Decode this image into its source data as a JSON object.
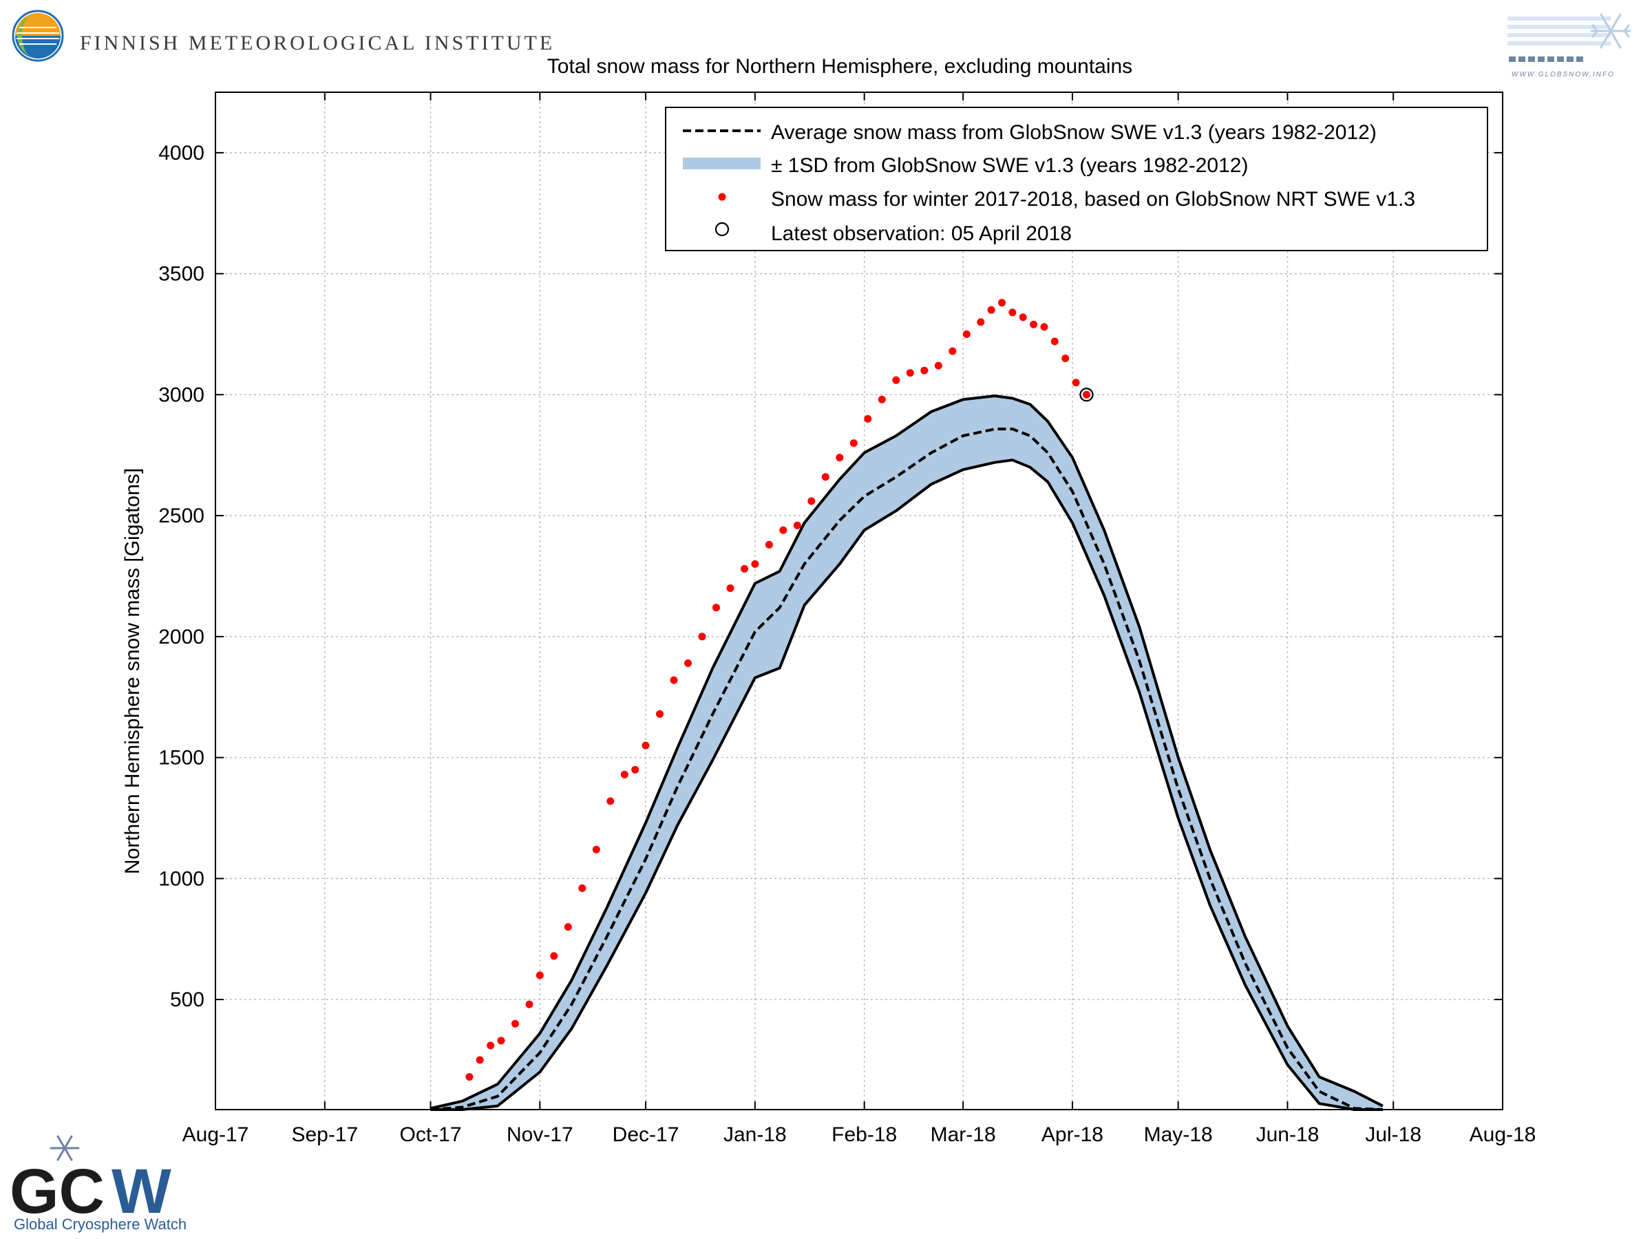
{
  "header": {
    "org_name": "FINNISH METEOROLOGICAL INSTITUTE",
    "partner_url": "WWW.GLOBSNOW.INFO",
    "footer_org": "Global Cryosphere Watch"
  },
  "colors": {
    "band_fill": "#b0cae3",
    "observation": "#ff0000",
    "mean_line": "#000000",
    "fmi_logo": [
      "#1f6fb5",
      "#f2a21b",
      "#7ab648"
    ],
    "gcw_blue": "#2a5c96"
  },
  "chart_data": {
    "type": "line",
    "title": "Total snow mass for Northern Hemisphere, excluding mountains",
    "ylabel": "Northern Hemisphere snow mass [Gigatons]",
    "xlabel": "",
    "ylim": [
      45,
      4250
    ],
    "x_range": [
      "2017-08-01",
      "2018-08-01"
    ],
    "grid": true,
    "legend_position": "top-right",
    "x_ticks": [
      {
        "date": "2017-08-01",
        "label": "Aug-17"
      },
      {
        "date": "2017-09-01",
        "label": "Sep-17"
      },
      {
        "date": "2017-10-01",
        "label": "Oct-17"
      },
      {
        "date": "2017-11-01",
        "label": "Nov-17"
      },
      {
        "date": "2017-12-01",
        "label": "Dec-17"
      },
      {
        "date": "2018-01-01",
        "label": "Jan-18"
      },
      {
        "date": "2018-02-01",
        "label": "Feb-18"
      },
      {
        "date": "2018-03-01",
        "label": "Mar-18"
      },
      {
        "date": "2018-04-01",
        "label": "Apr-18"
      },
      {
        "date": "2018-05-01",
        "label": "May-18"
      },
      {
        "date": "2018-06-01",
        "label": "Jun-18"
      },
      {
        "date": "2018-07-01",
        "label": "Jul-18"
      },
      {
        "date": "2018-08-01",
        "label": "Aug-18"
      }
    ],
    "y_ticks": [
      500,
      1000,
      1500,
      2000,
      2500,
      3000,
      3500,
      4000
    ],
    "legend": [
      {
        "label": "Average snow mass from GlobSnow SWE v1.3 (years 1982-2012)",
        "kind": "dashed-line"
      },
      {
        "label": "± 1SD from GlobSnow SWE v1.3 (years 1982-2012)",
        "kind": "band"
      },
      {
        "label": "Snow mass for winter 2017-2018, based on GlobSnow NRT SWE v1.3",
        "kind": "dot"
      },
      {
        "label": "Latest observation: 05 April 2018",
        "kind": "circle"
      }
    ],
    "series": [
      {
        "name": "Average snow mass from GlobSnow SWE v1.3 (years 1982-2012)",
        "x": [
          "2017-10-01",
          "2017-10-10",
          "2017-10-20",
          "2017-11-01",
          "2017-11-10",
          "2017-11-20",
          "2017-12-01",
          "2017-12-10",
          "2017-12-20",
          "2018-01-01",
          "2018-01-08",
          "2018-01-15",
          "2018-01-25",
          "2018-02-01",
          "2018-02-10",
          "2018-02-20",
          "2018-03-01",
          "2018-03-10",
          "2018-03-15",
          "2018-03-20",
          "2018-03-25",
          "2018-04-01",
          "2018-04-10",
          "2018-04-20",
          "2018-05-01",
          "2018-05-10",
          "2018-05-20",
          "2018-06-01",
          "2018-06-10",
          "2018-06-20",
          "2018-06-28"
        ],
        "values": [
          45,
          55,
          100,
          280,
          480,
          760,
          1080,
          1380,
          1680,
          2020,
          2120,
          2300,
          2480,
          2580,
          2660,
          2760,
          2830,
          2858,
          2858,
          2830,
          2760,
          2600,
          2300,
          1900,
          1370,
          1000,
          650,
          300,
          120,
          50,
          45
        ]
      },
      {
        "name": "+1SD",
        "x": [
          "2017-10-01",
          "2017-10-10",
          "2017-10-20",
          "2017-11-01",
          "2017-11-10",
          "2017-11-20",
          "2017-12-01",
          "2017-12-10",
          "2017-12-20",
          "2018-01-01",
          "2018-01-08",
          "2018-01-15",
          "2018-01-25",
          "2018-02-01",
          "2018-02-10",
          "2018-02-20",
          "2018-03-01",
          "2018-03-10",
          "2018-03-15",
          "2018-03-20",
          "2018-03-25",
          "2018-04-01",
          "2018-04-10",
          "2018-04-20",
          "2018-05-01",
          "2018-05-10",
          "2018-05-20",
          "2018-06-01",
          "2018-06-10",
          "2018-06-20",
          "2018-06-28"
        ],
        "values": [
          50,
          80,
          150,
          360,
          580,
          880,
          1230,
          1540,
          1870,
          2220,
          2270,
          2470,
          2650,
          2760,
          2830,
          2930,
          2980,
          2995,
          2985,
          2960,
          2890,
          2740,
          2440,
          2040,
          1500,
          1120,
          760,
          390,
          180,
          120,
          60
        ]
      },
      {
        "name": "-1SD",
        "x": [
          "2017-10-01",
          "2017-10-10",
          "2017-10-20",
          "2017-11-01",
          "2017-11-10",
          "2017-11-20",
          "2017-12-01",
          "2017-12-10",
          "2017-12-20",
          "2018-01-01",
          "2018-01-08",
          "2018-01-15",
          "2018-01-25",
          "2018-02-01",
          "2018-02-10",
          "2018-02-20",
          "2018-03-01",
          "2018-03-10",
          "2018-03-15",
          "2018-03-20",
          "2018-03-25",
          "2018-04-01",
          "2018-04-10",
          "2018-04-20",
          "2018-05-01",
          "2018-05-10",
          "2018-05-20",
          "2018-06-01",
          "2018-06-10",
          "2018-06-20",
          "2018-06-28"
        ],
        "values": [
          45,
          45,
          60,
          200,
          380,
          640,
          940,
          1220,
          1490,
          1830,
          1870,
          2130,
          2300,
          2440,
          2520,
          2630,
          2690,
          2720,
          2730,
          2700,
          2640,
          2470,
          2170,
          1770,
          1250,
          890,
          560,
          230,
          70,
          45,
          45
        ]
      },
      {
        "name": "Snow mass for winter 2017-2018, based on GlobSnow NRT SWE v1.3",
        "x": [
          "2017-10-12",
          "2017-10-15",
          "2017-10-18",
          "2017-10-21",
          "2017-10-25",
          "2017-10-29",
          "2017-11-01",
          "2017-11-05",
          "2017-11-09",
          "2017-11-13",
          "2017-11-17",
          "2017-11-21",
          "2017-11-25",
          "2017-11-28",
          "2017-12-01",
          "2017-12-05",
          "2017-12-09",
          "2017-12-13",
          "2017-12-17",
          "2017-12-21",
          "2017-12-25",
          "2017-12-29",
          "2018-01-01",
          "2018-01-05",
          "2018-01-09",
          "2018-01-13",
          "2018-01-17",
          "2018-01-21",
          "2018-01-25",
          "2018-01-29",
          "2018-02-02",
          "2018-02-06",
          "2018-02-10",
          "2018-02-14",
          "2018-02-18",
          "2018-02-22",
          "2018-02-26",
          "2018-03-02",
          "2018-03-06",
          "2018-03-09",
          "2018-03-12",
          "2018-03-15",
          "2018-03-18",
          "2018-03-21",
          "2018-03-24",
          "2018-03-27",
          "2018-03-30",
          "2018-04-02",
          "2018-04-05"
        ],
        "values": [
          180,
          250,
          310,
          330,
          400,
          480,
          600,
          680,
          800,
          960,
          1120,
          1320,
          1430,
          1450,
          1550,
          1680,
          1820,
          1890,
          2000,
          2120,
          2200,
          2280,
          2300,
          2380,
          2440,
          2460,
          2560,
          2660,
          2740,
          2800,
          2900,
          2980,
          3060,
          3090,
          3100,
          3120,
          3180,
          3250,
          3300,
          3350,
          3380,
          3340,
          3320,
          3290,
          3280,
          3220,
          3150,
          3050,
          3000
        ]
      }
    ],
    "latest_observation": {
      "x": "2018-04-05",
      "y": 3000
    }
  }
}
